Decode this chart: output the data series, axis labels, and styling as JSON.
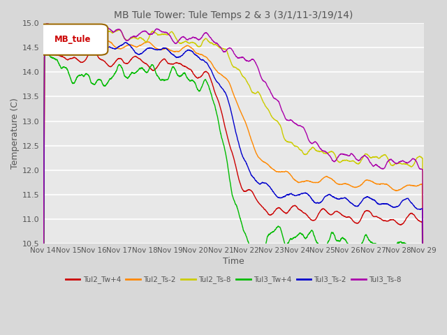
{
  "title": "MB Tule Tower: Tule Temps 2 & 3 (3/1/11-3/19/14)",
  "xlabel": "Time",
  "ylabel": "Temperature (C)",
  "ylim": [
    10.5,
    15.0
  ],
  "yticks": [
    10.5,
    11.0,
    11.5,
    12.0,
    12.5,
    13.0,
    13.5,
    14.0,
    14.5,
    15.0
  ],
  "x_labels": [
    "Nov 14",
    "Nov 15",
    "Nov 16",
    "Nov 17",
    "Nov 18",
    "Nov 19",
    "Nov 20",
    "Nov 21",
    "Nov 22",
    "Nov 23",
    "Nov 24",
    "Nov 25",
    "Nov 26",
    "Nov 27",
    "Nov 28",
    "Nov 29"
  ],
  "legend_label": "MB_tule",
  "background_color": "#d8d8d8",
  "plot_bg_color": "#e8e8e8",
  "grid_color": "#ffffff",
  "series": [
    {
      "name": "Tul2_Tw+4",
      "color": "#cc0000"
    },
    {
      "name": "Tul2_Ts-2",
      "color": "#ff8800"
    },
    {
      "name": "Tul2_Ts-8",
      "color": "#cccc00"
    },
    {
      "name": "Tul3_Tw+4",
      "color": "#00bb00"
    },
    {
      "name": "Tul3_Ts-2",
      "color": "#0000cc"
    },
    {
      "name": "Tul3_Ts-8",
      "color": "#aa00aa"
    }
  ]
}
